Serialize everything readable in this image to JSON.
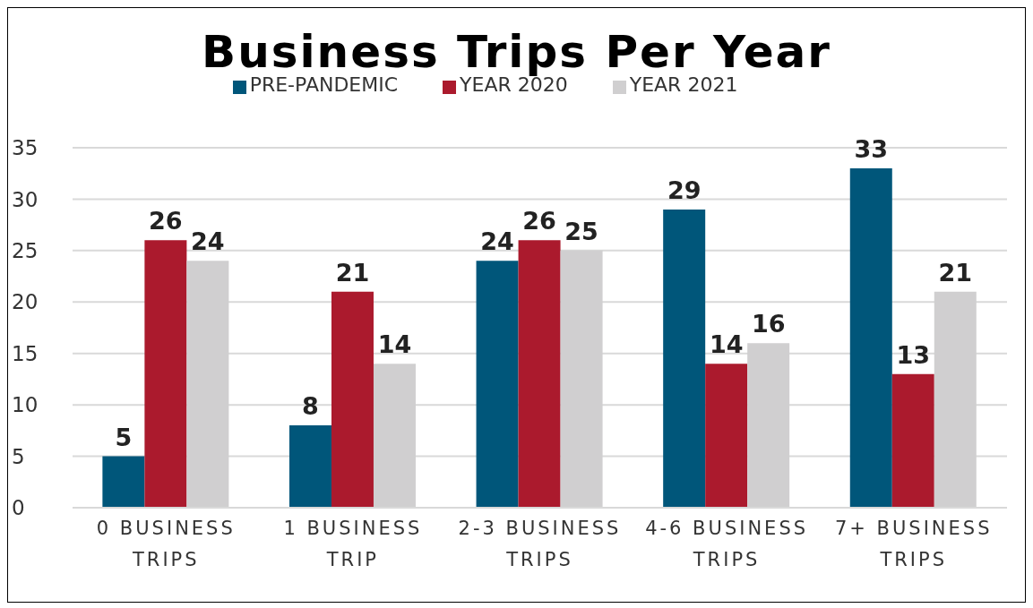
{
  "chart_data": {
    "type": "bar",
    "title": "Business Trips Per Year",
    "categories": [
      "0 BUSINESS TRIPS",
      "1 BUSINESS TRIP",
      "2-3 BUSINESS TRIPS",
      "4-6 BUSINESS TRIPS",
      "7+ BUSINESS TRIPS"
    ],
    "series": [
      {
        "name": "PRE-PANDEMIC",
        "color": "#00567a",
        "values": [
          5,
          8,
          24,
          29,
          33
        ]
      },
      {
        "name": "YEAR 2020",
        "color": "#ab1a2d",
        "values": [
          26,
          21,
          26,
          14,
          13
        ]
      },
      {
        "name": "YEAR 2021",
        "color": "#d0cfd0",
        "values": [
          24,
          14,
          25,
          16,
          21
        ]
      }
    ],
    "ylim": [
      0,
      35
    ],
    "yticks": [
      0,
      5,
      10,
      15,
      20,
      25,
      30,
      35
    ],
    "grid": "y",
    "legend": "top",
    "data_labels": true
  }
}
